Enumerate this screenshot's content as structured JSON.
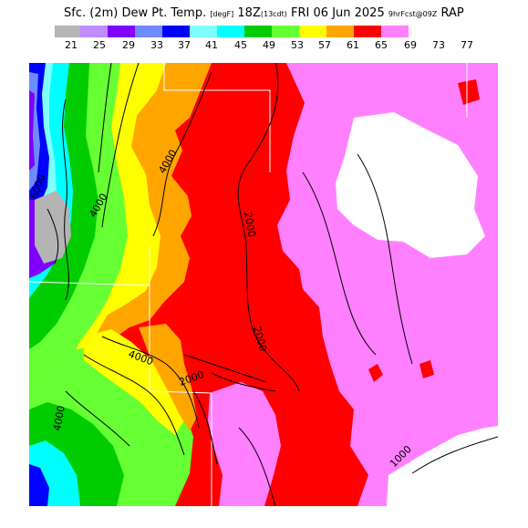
{
  "header": {
    "title_main": "Sfc. (2m) Dew Pt. Temp.",
    "title_unit": "[degF]",
    "title_valid": "18Z",
    "title_day": "(13cdt)",
    "title_date": "FRI 06 Jun 2025",
    "title_fcst": "9hrFcst@09Z",
    "title_model": "RAP"
  },
  "legend": {
    "labels": [
      "21",
      "25",
      "29",
      "33",
      "37",
      "41",
      "45",
      "49",
      "53",
      "57",
      "61",
      "65",
      "69",
      "73",
      "77"
    ],
    "colors": [
      "#b4b4b4",
      "#bf8cff",
      "#7f00ff",
      "#6e8cff",
      "#0000ff",
      "#80ffff",
      "#00ffff",
      "#00cc00",
      "#66ff33",
      "#ffff00",
      "#ffa500",
      "#ff0000",
      "#ff80ff",
      "#ffffff"
    ]
  },
  "map": {
    "contour_labels": [
      "4000",
      "6000",
      "4000",
      "2000",
      "2000",
      "4000",
      "2000",
      "4000",
      "1000"
    ],
    "colors": {
      "gray": "#b4b4b4",
      "purple": "#7f00ff",
      "lavender": "#bf8cff",
      "slate_blue": "#6e8cff",
      "blue": "#0000ff",
      "light_cyan": "#80ffff",
      "cyan": "#00ffff",
      "dark_green": "#00cc00",
      "lime": "#66ff33",
      "yellow": "#ffff00",
      "orange": "#ffa500",
      "red": "#ff0000",
      "pink": "#ff80ff",
      "white": "#ffffff"
    }
  }
}
